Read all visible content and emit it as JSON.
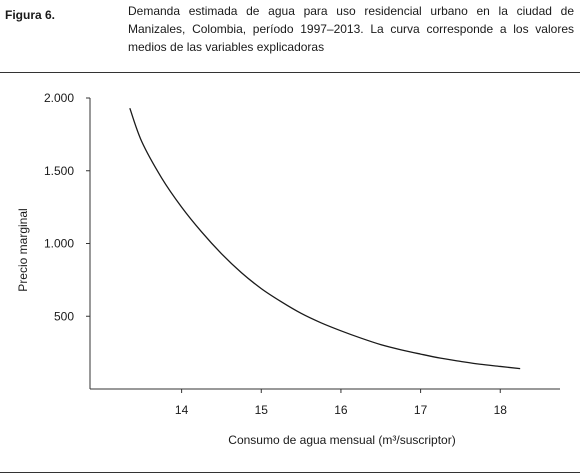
{
  "figure": {
    "label": "Figura 6.",
    "caption": "Demanda estimada de agua para uso residencial urbano en la ciudad de Manizales, Colombia, período 1997–2013. La curva corresponde a los valores medios de las variables explicadoras"
  },
  "chart_data": {
    "type": "line",
    "xlabel": "Consumo de agua mensual (m³/suscriptor)",
    "ylabel": "Precio marginal",
    "xlim": [
      12.85,
      18.75
    ],
    "ylim": [
      0,
      2000
    ],
    "xticks": [
      14,
      15,
      16,
      17,
      18
    ],
    "yticks": [
      500,
      1000,
      1500,
      2000
    ],
    "xtick_labels": [
      "14",
      "15",
      "16",
      "17",
      "18"
    ],
    "ytick_labels": [
      "500",
      "1.000",
      "1.500",
      "2.000"
    ],
    "grid": false,
    "series": [
      {
        "x": [
          13.35,
          13.5,
          13.75,
          14.0,
          14.25,
          14.5,
          14.75,
          15.0,
          15.25,
          15.5,
          15.75,
          16.0,
          16.25,
          16.5,
          16.75,
          17.0,
          17.25,
          17.5,
          17.75,
          18.0,
          18.25
        ],
        "values": [
          1930,
          1700,
          1450,
          1250,
          1080,
          930,
          800,
          690,
          600,
          520,
          455,
          400,
          350,
          305,
          270,
          240,
          212,
          190,
          170,
          155,
          140
        ]
      }
    ]
  }
}
